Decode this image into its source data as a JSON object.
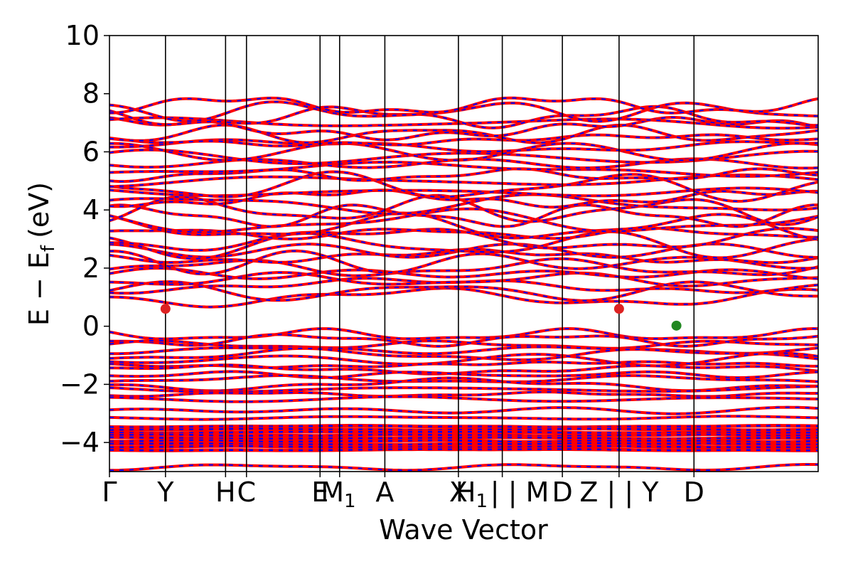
{
  "chart_data": {
    "type": "line",
    "xlabel": "Wave Vector",
    "ylabel_main": "E − E",
    "ylabel_sub": "f",
    "ylabel_unit": "(eV)",
    "ylim": [
      -5,
      10
    ],
    "yticks": [
      {
        "value": 10,
        "label": "10"
      },
      {
        "value": 8,
        "label": "8"
      },
      {
        "value": 6,
        "label": "6"
      },
      {
        "value": 4,
        "label": "4"
      },
      {
        "value": 2,
        "label": "2"
      },
      {
        "value": 0,
        "label": "0"
      },
      {
        "value": -2,
        "label": "−2"
      },
      {
        "value": -4,
        "label": "−4"
      }
    ],
    "xlim": [
      0,
      10.5
    ],
    "kpoints": [
      {
        "label": "Γ",
        "x": 0.0
      },
      {
        "label": "Y",
        "x": 0.83
      },
      {
        "label": "H",
        "x": 1.72
      },
      {
        "label": "C",
        "x": 2.03
      },
      {
        "label": "E",
        "x": 3.12
      },
      {
        "label": "M",
        "sub": "1",
        "x": 3.41
      },
      {
        "label": "A",
        "x": 4.08
      },
      {
        "label": "X",
        "x": 5.17
      },
      {
        "label": "H",
        "sub": "1",
        "x": 5.82,
        "suffix": "|"
      },
      {
        "label": "M",
        "x": 5.82,
        "prefix": "| "
      },
      {
        "label": "D",
        "x": 6.71
      },
      {
        "label": "Z",
        "x": 7.55,
        "suffix": " |"
      },
      {
        "label": "Y",
        "x": 7.55,
        "prefix": "| "
      },
      {
        "label": "D",
        "x": 8.66
      }
    ],
    "series": [
      {
        "spin": "up",
        "color": "#ff0000"
      },
      {
        "spin": "down",
        "color": "#0000ff"
      }
    ],
    "markers": [
      {
        "x": 0.83,
        "y": 0.6,
        "color": "#dd2222"
      },
      {
        "x": 7.55,
        "y": 0.6,
        "color": "#dd2222"
      },
      {
        "x": 8.4,
        "y": 0.02,
        "color": "#228822"
      }
    ],
    "grid": false
  }
}
